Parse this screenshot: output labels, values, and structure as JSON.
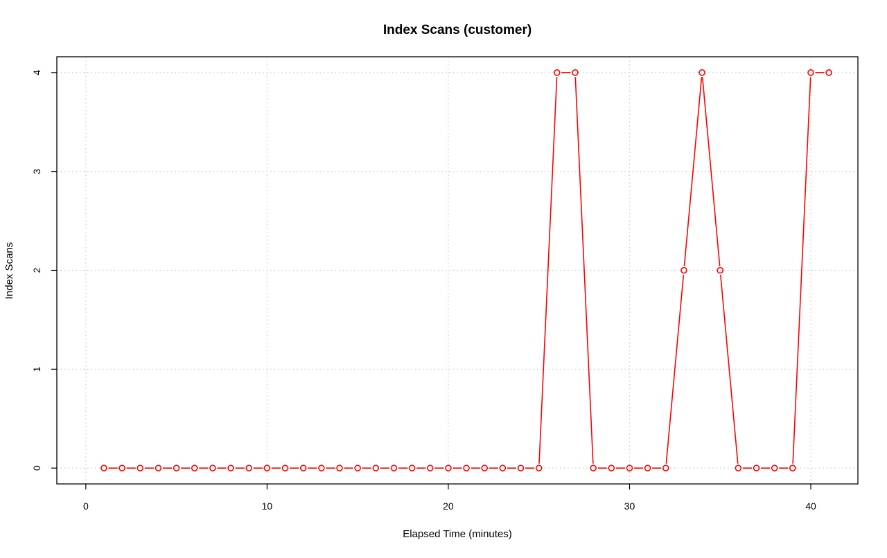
{
  "chart_data": {
    "type": "line",
    "title": "Index Scans (customer)",
    "xlabel": "Elapsed Time (minutes)",
    "ylabel": "Index Scans",
    "xlim": [
      -1.6,
      42.6
    ],
    "ylim": [
      -0.16,
      4.16
    ],
    "x_ticks": [
      0,
      10,
      20,
      30,
      40
    ],
    "y_ticks": [
      0,
      1,
      2,
      3,
      4
    ],
    "grid": true,
    "series_color": "#ff0000",
    "x": [
      1,
      2,
      3,
      4,
      5,
      6,
      7,
      8,
      9,
      10,
      11,
      12,
      13,
      14,
      15,
      16,
      17,
      18,
      19,
      20,
      21,
      22,
      23,
      24,
      25,
      26,
      27,
      28,
      29,
      30,
      31,
      32,
      33,
      34,
      35,
      36,
      37,
      38,
      39,
      40,
      41
    ],
    "y": [
      0,
      0,
      0,
      0,
      0,
      0,
      0,
      0,
      0,
      0,
      0,
      0,
      0,
      0,
      0,
      0,
      0,
      0,
      0,
      0,
      0,
      0,
      0,
      0,
      0,
      4,
      4,
      0,
      0,
      0,
      0,
      0,
      2,
      4,
      2,
      0,
      0,
      0,
      0,
      4,
      4
    ]
  }
}
